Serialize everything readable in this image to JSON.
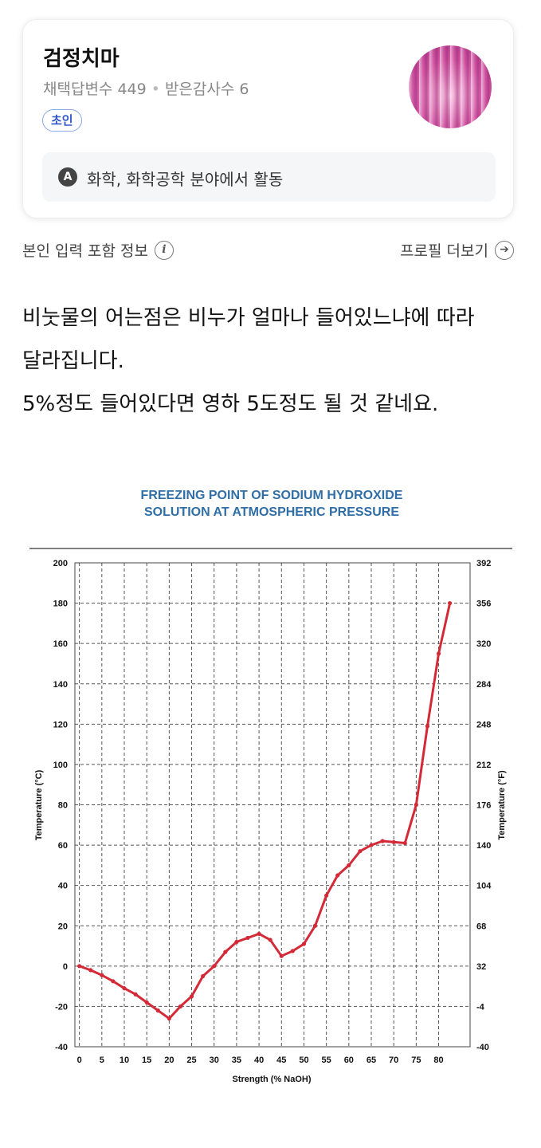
{
  "profile": {
    "name": "검정치마",
    "stats_answers": "채택답변수 449",
    "stats_thanks": "받은감사수 6",
    "badge": "초인",
    "field_icon": "A",
    "field_text": "화학, 화학공학 분야에서 활동"
  },
  "info": {
    "left_label": "본인 입력 포함 정보",
    "left_icon": "i",
    "right_label": "프로필 더보기",
    "right_icon": "➔"
  },
  "answer": {
    "line1": "비눗물의 어는점은 비누가 얼마나 들어있느냐에 따라",
    "line2": "달라집니다.",
    "line3": "5%정도 들어있다면 영하 5도정도 될 것 같네요."
  },
  "chart_data": {
    "type": "line",
    "title_line1": "FREEZING POINT OF SODIUM HYDROXIDE",
    "title_line2": "SOLUTION AT ATMOSPHERIC PRESSURE",
    "xlabel": "Strength (% NaOH)",
    "ylabel": "Temperature (°C)",
    "y2label": "Temperature (°F)",
    "xlim": [
      -1,
      87
    ],
    "ylim": [
      -40,
      200
    ],
    "x_ticks": [
      0,
      5,
      10,
      15,
      20,
      25,
      30,
      35,
      40,
      45,
      50,
      55,
      60,
      65,
      70,
      75,
      80
    ],
    "y_ticks": [
      -40,
      -20,
      0,
      20,
      40,
      60,
      80,
      100,
      120,
      140,
      160,
      180,
      200
    ],
    "y2_ticks": [
      -40,
      -4,
      32,
      68,
      104,
      140,
      176,
      212,
      248,
      284,
      320,
      356,
      392
    ],
    "grid": true,
    "line_color": "#d42a38",
    "title_color": "#2f6ea6",
    "points": [
      {
        "x": 0,
        "y": 0
      },
      {
        "x": 2.5,
        "y": -2
      },
      {
        "x": 5,
        "y": -4.5
      },
      {
        "x": 7.5,
        "y": -7.5
      },
      {
        "x": 10,
        "y": -11
      },
      {
        "x": 12.5,
        "y": -14
      },
      {
        "x": 15,
        "y": -18
      },
      {
        "x": 17.5,
        "y": -22
      },
      {
        "x": 20,
        "y": -26
      },
      {
        "x": 22.5,
        "y": -20
      },
      {
        "x": 25,
        "y": -15
      },
      {
        "x": 27.5,
        "y": -5
      },
      {
        "x": 30,
        "y": 0
      },
      {
        "x": 32.5,
        "y": 7
      },
      {
        "x": 35,
        "y": 12
      },
      {
        "x": 37.5,
        "y": 14
      },
      {
        "x": 40,
        "y": 16
      },
      {
        "x": 42.5,
        "y": 13
      },
      {
        "x": 45,
        "y": 5
      },
      {
        "x": 47.5,
        "y": 7.5
      },
      {
        "x": 50,
        "y": 11
      },
      {
        "x": 52.5,
        "y": 20
      },
      {
        "x": 55,
        "y": 35
      },
      {
        "x": 57.5,
        "y": 45
      },
      {
        "x": 60,
        "y": 50
      },
      {
        "x": 62.5,
        "y": 57
      },
      {
        "x": 65,
        "y": 60
      },
      {
        "x": 67.5,
        "y": 62
      },
      {
        "x": 70,
        "y": 61.5
      },
      {
        "x": 72.5,
        "y": 61
      },
      {
        "x": 75,
        "y": 80
      },
      {
        "x": 77.5,
        "y": 119
      },
      {
        "x": 80,
        "y": 155
      },
      {
        "x": 82.5,
        "y": 180
      }
    ]
  }
}
